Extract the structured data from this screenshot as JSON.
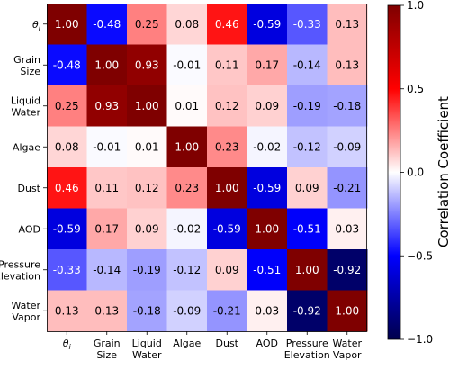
{
  "chart_data": {
    "type": "heatmap",
    "title": "",
    "row_labels": [
      [
        "θ_i"
      ],
      [
        "Grain",
        "Size"
      ],
      [
        "Liquid",
        "Water"
      ],
      [
        "Algae"
      ],
      [
        "Dust"
      ],
      [
        "AOD"
      ],
      [
        "Pressure",
        "Elevation"
      ],
      [
        "Water",
        "Vapor"
      ]
    ],
    "col_labels": [
      [
        "θ_i"
      ],
      [
        "Grain",
        "Size"
      ],
      [
        "Liquid",
        "Water"
      ],
      [
        "Algae"
      ],
      [
        "Dust"
      ],
      [
        "AOD"
      ],
      [
        "Pressure",
        "Elevation"
      ],
      [
        "Water",
        "Vapor"
      ]
    ],
    "values": [
      [
        1.0,
        -0.48,
        0.25,
        0.08,
        0.46,
        -0.59,
        -0.33,
        0.13
      ],
      [
        -0.48,
        1.0,
        0.93,
        -0.01,
        0.11,
        0.17,
        -0.14,
        0.13
      ],
      [
        0.25,
        0.93,
        1.0,
        0.01,
        0.12,
        0.09,
        -0.19,
        -0.18
      ],
      [
        0.08,
        -0.01,
        0.01,
        1.0,
        0.23,
        -0.02,
        -0.12,
        -0.09
      ],
      [
        0.46,
        0.11,
        0.12,
        0.23,
        1.0,
        -0.59,
        0.09,
        -0.21
      ],
      [
        -0.59,
        0.17,
        0.09,
        -0.02,
        -0.59,
        1.0,
        -0.51,
        0.03
      ],
      [
        -0.33,
        -0.14,
        -0.19,
        -0.12,
        0.09,
        -0.51,
        1.0,
        -0.92
      ],
      [
        0.13,
        0.13,
        -0.18,
        -0.09,
        -0.21,
        0.03,
        -0.92,
        1.0
      ]
    ],
    "value_format": "2 decimals",
    "colormap": "seismic",
    "vmin": -1.0,
    "vmax": 1.0,
    "colorbar": {
      "label": "Correlation Coefficient",
      "ticks": [
        "1.0",
        "0.5",
        "0.0",
        "−0.5",
        "−1.0"
      ],
      "tick_values": [
        1.0,
        0.5,
        0.0,
        -0.5,
        -1.0
      ],
      "placement": "right"
    },
    "colors": {
      "min": "#00004c",
      "mid_low": "#0000ff",
      "center": "#ffffff",
      "mid_high": "#ff0000",
      "max": "#7f0000"
    }
  }
}
